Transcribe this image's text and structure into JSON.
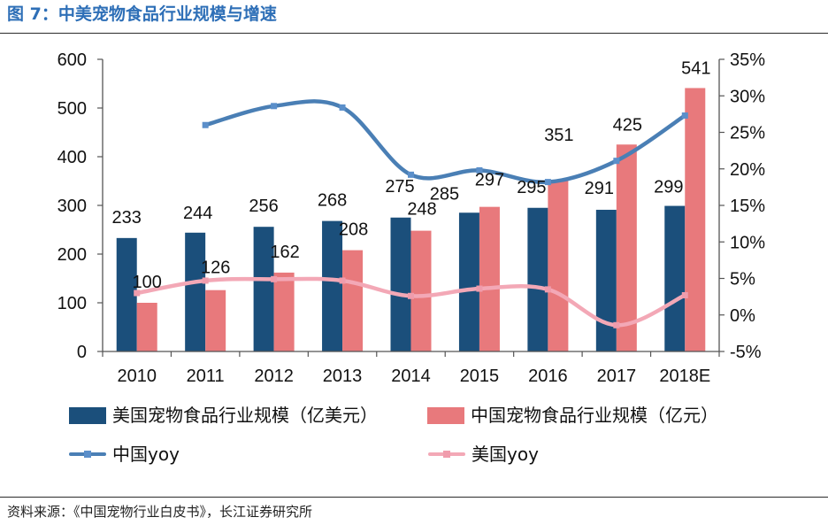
{
  "chart_data": {
    "type": "bar",
    "title": "图 7：中美宠物食品行业规模与增速",
    "xlabel": "",
    "ylabel": "",
    "categories": [
      "2010",
      "2011",
      "2012",
      "2013",
      "2014",
      "2015",
      "2016",
      "2017",
      "2018E"
    ],
    "series": [
      {
        "name": "美国宠物食品行业规模（亿美元）",
        "type": "bar",
        "axis": "left",
        "color": "#1b4f7b",
        "values": [
          233,
          244,
          256,
          268,
          275,
          285,
          295,
          291,
          299
        ]
      },
      {
        "name": "中国宠物食品行业规模（亿元）",
        "type": "bar",
        "axis": "left",
        "color": "#e8797c",
        "values": [
          100,
          126,
          162,
          208,
          248,
          297,
          351,
          425,
          541
        ]
      },
      {
        "name": "中国yoy",
        "type": "line",
        "axis": "right",
        "color": "#4a7fb5",
        "marker_color": "#5b8fca",
        "values": [
          null,
          26.0,
          28.6,
          28.4,
          19.2,
          19.8,
          18.2,
          21.1,
          27.3
        ]
      },
      {
        "name": "美国yoy",
        "type": "line",
        "axis": "right",
        "color": "#f3a8b6",
        "marker_color": "#f09cac",
        "values": [
          3.0,
          4.7,
          4.9,
          4.7,
          2.6,
          3.6,
          3.5,
          -1.4,
          2.7
        ]
      }
    ],
    "y_left": {
      "ylim": [
        0,
        600
      ],
      "ticks": [
        0,
        100,
        200,
        300,
        400,
        500,
        600
      ]
    },
    "y_right": {
      "ylim": [
        -5,
        35
      ],
      "ticks": [
        -5,
        0,
        5,
        10,
        15,
        20,
        25,
        30,
        35
      ],
      "tick_labels": [
        "-5%",
        "0%",
        "5%",
        "10%",
        "15%",
        "20%",
        "25%",
        "30%",
        "35%"
      ]
    },
    "grid": false,
    "legend": "bottom"
  },
  "source": "资料来源：《中国宠物行业白皮书》，长江证券研究所"
}
